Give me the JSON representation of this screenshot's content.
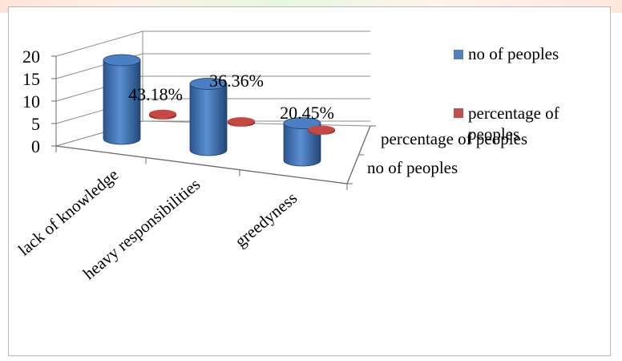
{
  "chart_data": {
    "type": "bar",
    "style": "3d-cylinder",
    "categories": [
      "lack of knowledge",
      "heavy responsibilities",
      "greedyness"
    ],
    "series": [
      {
        "name": "no of peoples",
        "values": [
          19,
          16,
          9
        ],
        "color": "#4f81bd"
      },
      {
        "name": "percentage of peoples",
        "values": [
          0.4318,
          0.3636,
          0.2045
        ],
        "color": "#c0504d"
      }
    ],
    "data_labels": [
      "43.18%",
      "36.36%",
      "20.45%"
    ],
    "depth_labels": [
      "percentage of peoples",
      "no of peoples"
    ],
    "y_ticks": [
      "0",
      "5",
      "10",
      "15",
      "20"
    ],
    "ylim": [
      0,
      20
    ],
    "grid": true,
    "legend_position": "right",
    "legend": [
      {
        "label": "no of peoples",
        "color": "#4f81bd"
      },
      {
        "label": "percentage of peoples",
        "color": "#c0504d"
      }
    ]
  }
}
